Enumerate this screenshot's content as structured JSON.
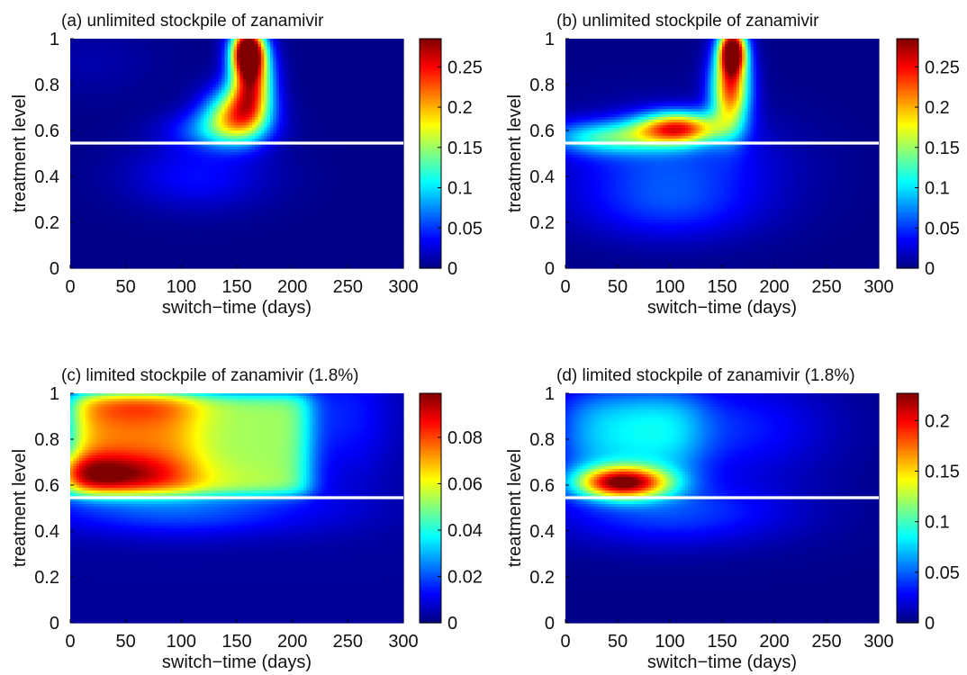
{
  "chart_data": [
    {
      "type": "heatmap",
      "panel": "a",
      "title": "(a) unlimited stockpile of zanamivir",
      "xlabel": "switch−time (days)",
      "ylabel": "treatment level",
      "xlim": [
        0,
        300
      ],
      "ylim": [
        0,
        1
      ],
      "xticks": [
        "0",
        "50",
        "100",
        "150",
        "200",
        "250",
        "300"
      ],
      "yticks": [
        "0",
        "0.2",
        "0.4",
        "0.6",
        "0.8",
        "1"
      ],
      "colorbar": {
        "range": [
          0,
          0.285
        ],
        "ticks": [
          "0",
          "0.05",
          "0.1",
          "0.15",
          "0.2",
          "0.25"
        ]
      },
      "threshold_line": 0.545,
      "features": [
        {
          "x": 160,
          "y": 0.95,
          "peak": 0.28,
          "sx": 10,
          "sy": 0.07
        },
        {
          "x": 163,
          "y": 0.82,
          "peak": 0.22,
          "sx": 13,
          "sy": 0.11
        },
        {
          "x": 150,
          "y": 0.67,
          "peak": 0.17,
          "sx": 20,
          "sy": 0.08
        },
        {
          "x": 130,
          "y": 0.6,
          "peak": 0.06,
          "sx": 30,
          "sy": 0.06
        },
        {
          "x": 115,
          "y": 0.4,
          "peak": 0.035,
          "sx": 45,
          "sy": 0.1
        },
        {
          "x": 20,
          "y": 0.9,
          "peak": 0.01,
          "sx": 40,
          "sy": 0.1
        }
      ]
    },
    {
      "type": "heatmap",
      "panel": "b",
      "title": "(b) unlimited stockpile of zanamivir",
      "xlabel": "switch−time (days)",
      "ylabel": "treatment level",
      "xlim": [
        0,
        300
      ],
      "ylim": [
        0,
        1
      ],
      "xticks": [
        "0",
        "50",
        "100",
        "150",
        "200",
        "250",
        "300"
      ],
      "yticks": [
        "0",
        "0.2",
        "0.4",
        "0.6",
        "0.8",
        "1"
      ],
      "colorbar": {
        "range": [
          0,
          0.285
        ],
        "ticks": [
          "0",
          "0.05",
          "0.1",
          "0.15",
          "0.2",
          "0.25"
        ]
      },
      "threshold_line": 0.545,
      "features": [
        {
          "x": 160,
          "y": 0.95,
          "peak": 0.28,
          "sx": 9,
          "sy": 0.07
        },
        {
          "x": 158,
          "y": 0.78,
          "peak": 0.22,
          "sx": 13,
          "sy": 0.12
        },
        {
          "x": 108,
          "y": 0.61,
          "peak": 0.21,
          "sx": 28,
          "sy": 0.05
        },
        {
          "x": 40,
          "y": 0.57,
          "peak": 0.1,
          "sx": 40,
          "sy": 0.05
        },
        {
          "x": 100,
          "y": 0.45,
          "peak": 0.05,
          "sx": 70,
          "sy": 0.15
        },
        {
          "x": 100,
          "y": 0.25,
          "peak": 0.03,
          "sx": 60,
          "sy": 0.1
        }
      ]
    },
    {
      "type": "heatmap",
      "panel": "c",
      "title": "(c) limited stockpile of zanamivir (1.8%)",
      "xlabel": "switch−time (days)",
      "ylabel": "treatment level",
      "xlim": [
        0,
        300
      ],
      "ylim": [
        0,
        1
      ],
      "xticks": [
        "0",
        "50",
        "100",
        "150",
        "200",
        "250",
        "300"
      ],
      "yticks": [
        "0",
        "0.2",
        "0.4",
        "0.6",
        "0.8",
        "1"
      ],
      "colorbar": {
        "range": [
          0,
          0.099
        ],
        "ticks": [
          "0",
          "0.02",
          "0.04",
          "0.06",
          "0.08"
        ]
      },
      "threshold_line": 0.545,
      "features": [
        {
          "plateau": true,
          "x0": 0,
          "x1": 215,
          "y0": 0.56,
          "y1": 1,
          "value": 0.05,
          "soft_x": 8,
          "soft_y": 0.02
        },
        {
          "plateau": true,
          "x0": 0,
          "x1": 110,
          "y0": 0.57,
          "y1": 1,
          "value": 0.022,
          "soft_x": 12,
          "soft_y": 0.03
        },
        {
          "x": 10,
          "y": 0.65,
          "peak": 0.035,
          "sx": 55,
          "sy": 0.06
        },
        {
          "x": 60,
          "y": 0.96,
          "peak": 0.012,
          "sx": 40,
          "sy": 0.06
        },
        {
          "x": 100,
          "y": 0.49,
          "peak": 0.018,
          "sx": 90,
          "sy": 0.08
        },
        {
          "x": 250,
          "y": 0.9,
          "peak": 0.012,
          "sx": 30,
          "sy": 0.2
        }
      ]
    },
    {
      "type": "heatmap",
      "panel": "d",
      "title": "(d) limited stockpile of zanamivir (1.8%)",
      "xlabel": "switch−time (days)",
      "ylabel": "treatment level",
      "xlim": [
        0,
        300
      ],
      "ylim": [
        0,
        1
      ],
      "xticks": [
        "0",
        "50",
        "100",
        "150",
        "200",
        "250",
        "300"
      ],
      "yticks": [
        "0",
        "0.2",
        "0.4",
        "0.6",
        "0.8",
        "1"
      ],
      "colorbar": {
        "range": [
          0,
          0.227
        ],
        "ticks": [
          "0",
          "0.05",
          "0.1",
          "0.15",
          "0.2"
        ]
      },
      "threshold_line": 0.545,
      "features": [
        {
          "x": 55,
          "y": 0.61,
          "peak": 0.2,
          "sx": 32,
          "sy": 0.05
        },
        {
          "plateau": true,
          "x0": 0,
          "x1": 125,
          "y0": 0.66,
          "y1": 1,
          "value": 0.085,
          "soft_x": 15,
          "soft_y": 0.05
        },
        {
          "x": 100,
          "y": 0.48,
          "peak": 0.04,
          "sx": 80,
          "sy": 0.1
        },
        {
          "x": 170,
          "y": 0.85,
          "peak": 0.03,
          "sx": 60,
          "sy": 0.15
        }
      ]
    }
  ]
}
